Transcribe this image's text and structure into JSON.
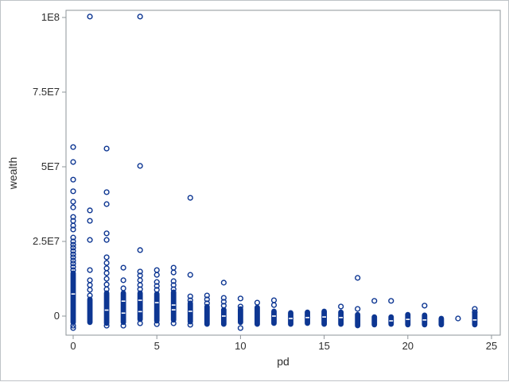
{
  "window": {
    "background": "#ffffff",
    "border_color": "#bfc3c7"
  },
  "chart_data": {
    "type": "scatter",
    "title": "",
    "xlabel": "pd",
    "ylabel": "wealth",
    "grid": false,
    "legend": false,
    "marker": "open-circle",
    "marker_color": "#0d3692",
    "frame_color": "#8e9499",
    "text_color": "#2e2e2e",
    "x_ticks": [
      0,
      5,
      10,
      15,
      20,
      25
    ],
    "y_tick_values_e7": [
      0,
      2.5,
      5,
      7.5,
      10
    ],
    "y_tick_labels": [
      "0",
      "2.5E7",
      "5E7",
      "7.5E7",
      "1E8"
    ],
    "xlim": [
      -0.43,
      25.5
    ],
    "ylim_e7": [
      -0.64,
      10.24
    ],
    "value_unit": "1e7",
    "columns": [
      {
        "pd": 0,
        "outliers_e7": [
          5.66,
          5.16,
          4.57,
          4.18,
          3.83,
          3.64,
          3.32,
          3.19,
          3.03,
          2.9,
          2.63,
          2.5,
          2.39,
          2.29,
          2.18,
          2.07,
          1.97,
          1.86,
          1.76,
          1.65,
          1.54,
          -0.32,
          -0.4
        ],
        "dense_range_e7": [
          -0.21,
          1.44
        ],
        "gap_notches_e7": [
          0.74
        ]
      },
      {
        "pd": 1,
        "outliers_e7": [
          10.03,
          3.54,
          3.19,
          2.55,
          1.54,
          1.2,
          1.04,
          0.88,
          0.69
        ],
        "dense_range_e7": [
          -0.21,
          0.56
        ],
        "gap_notches_e7": []
      },
      {
        "pd": 2,
        "outliers_e7": [
          5.61,
          4.15,
          3.75,
          2.77,
          2.55,
          1.97,
          1.78,
          1.6,
          1.44,
          1.25,
          1.06,
          0.9,
          -0.32
        ],
        "dense_range_e7": [
          -0.24,
          0.77
        ],
        "gap_notches_e7": [
          0.2
        ]
      },
      {
        "pd": 3,
        "outliers_e7": [
          1.62,
          1.2,
          0.93,
          -0.32
        ],
        "dense_range_e7": [
          -0.21,
          0.77
        ],
        "gap_notches_e7": [
          0.5,
          0.1
        ]
      },
      {
        "pd": 4,
        "outliers_e7": [
          10.03,
          5.03,
          2.21,
          1.49,
          1.36,
          1.2,
          1.04,
          0.9,
          -0.24
        ],
        "dense_range_e7": [
          -0.11,
          0.77
        ],
        "gap_notches_e7": [
          0.53,
          0.15
        ]
      },
      {
        "pd": 5,
        "outliers_e7": [
          1.54,
          1.38,
          1.14,
          1.01,
          0.88,
          -0.27
        ],
        "dense_range_e7": [
          -0.16,
          0.74
        ],
        "gap_notches_e7": [
          0.45
        ]
      },
      {
        "pd": 6,
        "outliers_e7": [
          1.62,
          1.46,
          1.17,
          1.04,
          0.9,
          -0.24
        ],
        "dense_range_e7": [
          -0.13,
          0.8
        ],
        "gap_notches_e7": [
          0.37,
          0.21
        ]
      },
      {
        "pd": 7,
        "outliers_e7": [
          3.96,
          1.38,
          0.66,
          0.53,
          -0.29
        ],
        "dense_range_e7": [
          -0.19,
          0.43
        ],
        "gap_notches_e7": [
          0.16
        ]
      },
      {
        "pd": 8,
        "outliers_e7": [
          0.69,
          0.56,
          0.43
        ],
        "dense_range_e7": [
          -0.27,
          0.32
        ],
        "gap_notches_e7": []
      },
      {
        "pd": 9,
        "outliers_e7": [
          1.12,
          0.61,
          0.48,
          0.35
        ],
        "dense_range_e7": [
          -0.27,
          0.21
        ],
        "gap_notches_e7": [
          0.0
        ]
      },
      {
        "pd": 10,
        "outliers_e7": [
          0.59,
          0.32,
          -0.4
        ],
        "dense_range_e7": [
          -0.21,
          0.24
        ],
        "gap_notches_e7": []
      },
      {
        "pd": 11,
        "outliers_e7": [
          0.45
        ],
        "dense_range_e7": [
          -0.27,
          0.29
        ],
        "gap_notches_e7": []
      },
      {
        "pd": 12,
        "outliers_e7": [
          0.53,
          0.37
        ],
        "dense_range_e7": [
          -0.24,
          0.16
        ],
        "gap_notches_e7": [
          0.0
        ]
      },
      {
        "pd": 13,
        "outliers_e7": [],
        "dense_range_e7": [
          -0.27,
          0.11
        ],
        "gap_notches_e7": [
          -0.08
        ]
      },
      {
        "pd": 14,
        "outliers_e7": [],
        "dense_range_e7": [
          -0.24,
          0.13
        ],
        "gap_notches_e7": [
          -0.05
        ]
      },
      {
        "pd": 15,
        "outliers_e7": [],
        "dense_range_e7": [
          -0.27,
          0.16
        ],
        "gap_notches_e7": [
          -0.03
        ]
      },
      {
        "pd": 16,
        "outliers_e7": [
          0.32
        ],
        "dense_range_e7": [
          -0.27,
          0.13
        ],
        "gap_notches_e7": [
          -0.05
        ]
      },
      {
        "pd": 17,
        "outliers_e7": [
          1.28,
          0.24
        ],
        "dense_range_e7": [
          -0.32,
          0.05
        ],
        "gap_notches_e7": []
      },
      {
        "pd": 18,
        "outliers_e7": [
          0.51
        ],
        "dense_range_e7": [
          -0.29,
          -0.03
        ],
        "gap_notches_e7": []
      },
      {
        "pd": 19,
        "outliers_e7": [
          0.51
        ],
        "dense_range_e7": [
          -0.27,
          -0.03
        ],
        "gap_notches_e7": [
          -0.16
        ]
      },
      {
        "pd": 20,
        "outliers_e7": [],
        "dense_range_e7": [
          -0.29,
          0.05
        ],
        "gap_notches_e7": [
          -0.11
        ]
      },
      {
        "pd": 21,
        "outliers_e7": [
          0.35
        ],
        "dense_range_e7": [
          -0.29,
          0.03
        ],
        "gap_notches_e7": [
          -0.13
        ]
      },
      {
        "pd": 22,
        "outliers_e7": [],
        "dense_range_e7": [
          -0.29,
          -0.08
        ],
        "gap_notches_e7": []
      },
      {
        "pd": 23,
        "outliers_e7": [
          -0.08
        ],
        "dense_range_e7": null,
        "gap_notches_e7": []
      },
      {
        "pd": 24,
        "outliers_e7": [
          0.24,
          0.13
        ],
        "dense_range_e7": [
          -0.29,
          0.08
        ],
        "gap_notches_e7": [
          -0.13
        ]
      }
    ]
  }
}
